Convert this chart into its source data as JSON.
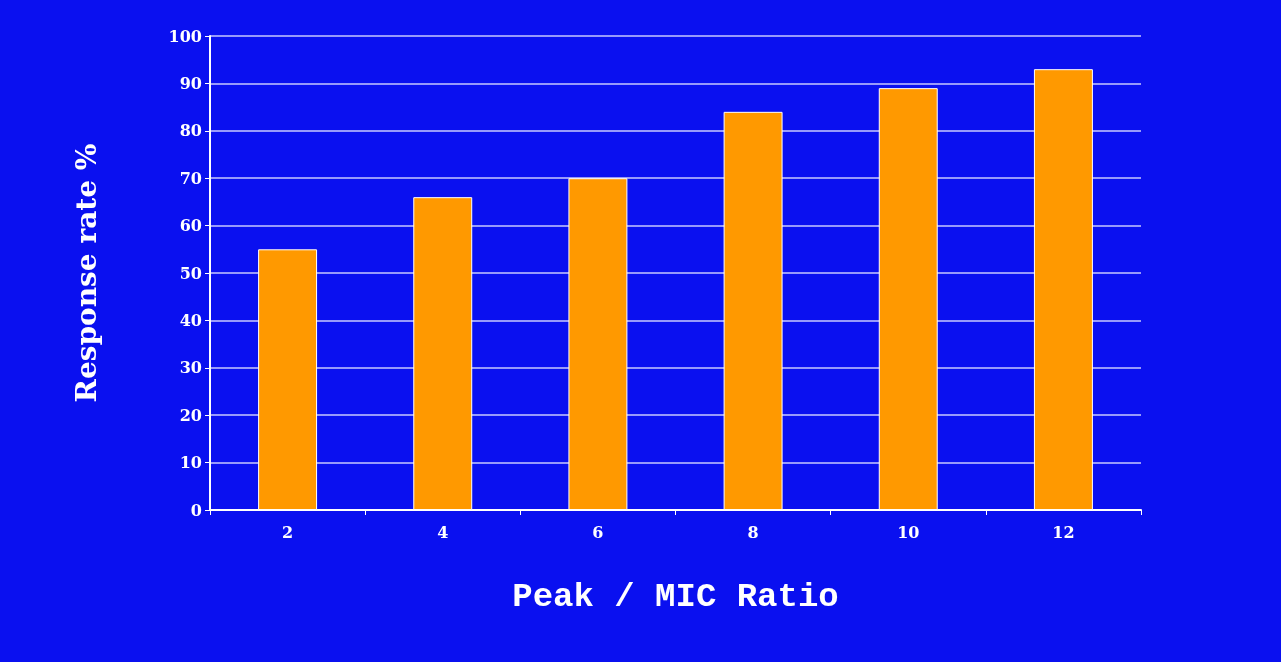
{
  "chart_data": {
    "type": "bar",
    "xlabel": "Peak / MIC Ratio",
    "ylabel": "Response rate %",
    "categories": [
      "2",
      "4",
      "6",
      "8",
      "10",
      "12"
    ],
    "values": [
      55,
      66,
      70,
      84,
      89,
      93
    ],
    "color": "#ff9900",
    "ylim": [
      0,
      100
    ],
    "yticks": [
      0,
      10,
      20,
      30,
      40,
      50,
      60,
      70,
      80,
      90,
      100
    ],
    "grid": "y"
  }
}
